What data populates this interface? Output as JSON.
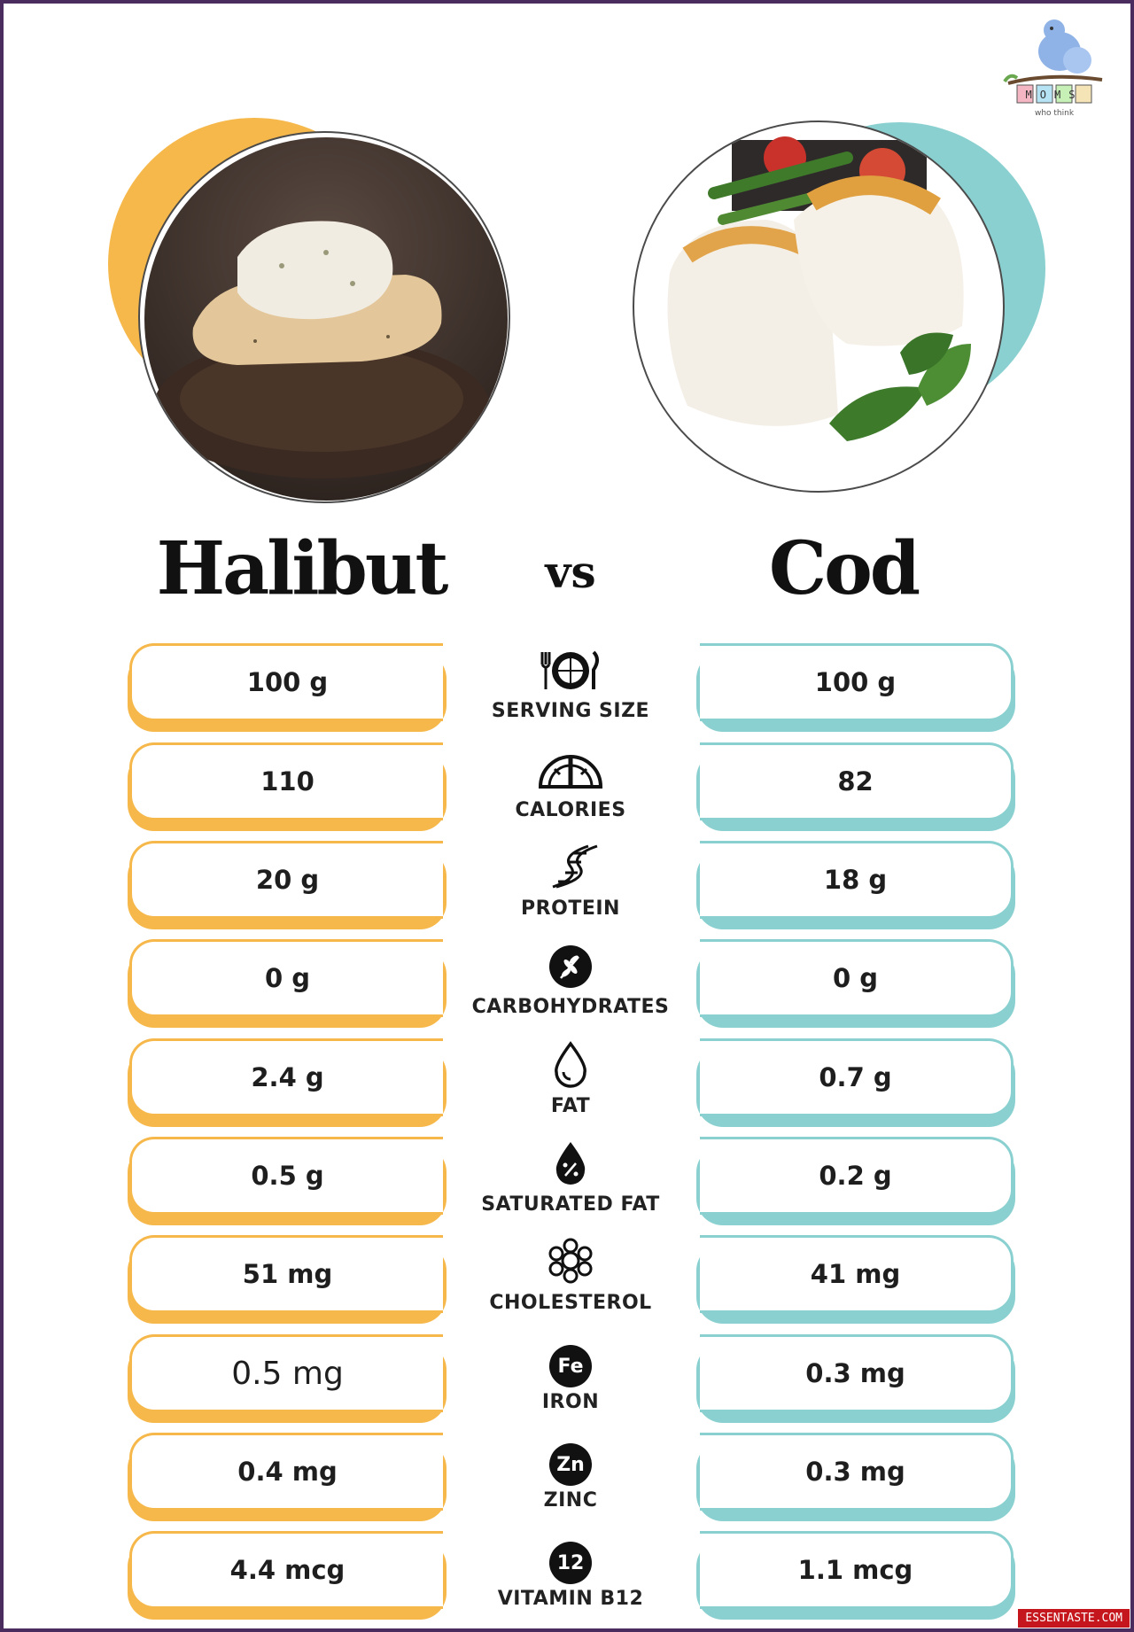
{
  "logo": {
    "text_top": "MOMS",
    "text_bottom": "who think"
  },
  "colors": {
    "halibut_accent": "#f6b84a",
    "cod_accent": "#8ad0d0",
    "frame": "#4a2c5e"
  },
  "headings": {
    "left": "Halibut",
    "vs": "vs",
    "right": "Cod"
  },
  "rows": [
    {
      "label": "SERVING SIZE",
      "icon": "plate-cutlery-icon",
      "halibut": "100 g",
      "cod": "100 g"
    },
    {
      "label": "CALORIES",
      "icon": "gauge-icon",
      "halibut": "110",
      "cod": "82"
    },
    {
      "label": "PROTEIN",
      "icon": "dna-icon",
      "halibut": "20 g",
      "cod": "18 g"
    },
    {
      "label": "CARBOHYDRATES",
      "icon": "grain-icon",
      "halibut": "0 g",
      "cod": "0 g"
    },
    {
      "label": "FAT",
      "icon": "drop-icon",
      "halibut": "2.4 g",
      "cod": "0.7 g"
    },
    {
      "label": "SATURATED FAT",
      "icon": "drop-percent-icon",
      "halibut": "0.5 g",
      "cod": "0.2 g"
    },
    {
      "label": "CHOLESTEROL",
      "icon": "molecule-cluster-icon",
      "halibut": "51 mg",
      "cod": "41 mg"
    },
    {
      "label": "IRON",
      "icon": "fe-badge-icon",
      "badge": "Fe",
      "halibut": "0.5 mg",
      "cod": "0.3 mg"
    },
    {
      "label": "ZINC",
      "icon": "zn-badge-icon",
      "badge": "Zn",
      "halibut": "0.4 mg",
      "cod": "0.3 mg"
    },
    {
      "label": "VITAMIN B12",
      "icon": "b12-badge-icon",
      "badge": "12",
      "halibut": "4.4 mcg",
      "cod": "1.1 mcg"
    }
  ],
  "watermark": "ESSENTASTE.COM"
}
